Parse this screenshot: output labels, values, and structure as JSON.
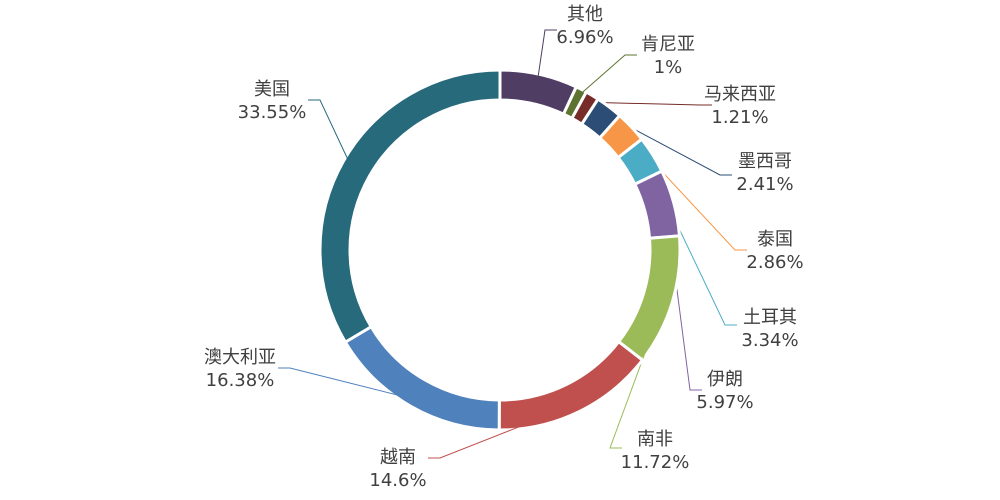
{
  "chart_data": {
    "type": "donut",
    "categories": [
      "其他",
      "肯尼亚",
      "马来西亚",
      "墨西哥",
      "泰国",
      "土耳其",
      "伊朗",
      "南非",
      "越南",
      "澳大利亚",
      "美国"
    ],
    "values": [
      6.96,
      1,
      1.21,
      2.41,
      2.86,
      3.34,
      5.97,
      11.72,
      14.6,
      16.38,
      33.55
    ],
    "value_labels": [
      "6.96%",
      "1%",
      "1.21%",
      "2.41%",
      "2.86%",
      "3.34%",
      "5.97%",
      "11.72%",
      "14.6%",
      "16.38%",
      "33.55%"
    ],
    "colors": [
      "#4f3d63",
      "#5e7330",
      "#772c2a",
      "#2c4d75",
      "#f79646",
      "#4bacc6",
      "#8064a2",
      "#9bbb59",
      "#c0504d",
      "#4f81bd",
      "#276a7c"
    ]
  }
}
